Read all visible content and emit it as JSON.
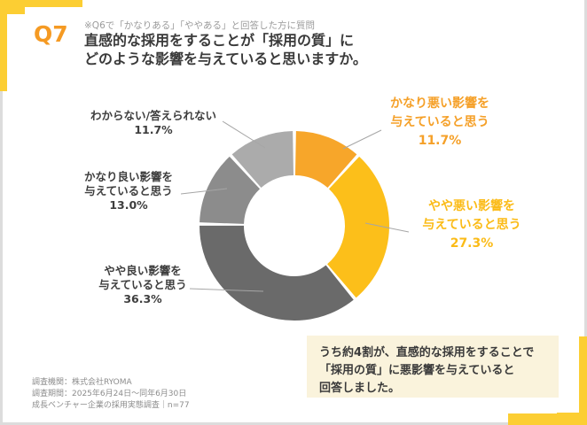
{
  "page": {
    "q_label": "Q7",
    "note": "※Q6で「かなりある」「ややある」と回答した方に質問",
    "title_line1": "直感的な採用をすることが「採用の質」に",
    "title_line2": "どのような影響を与えていると思いますか。",
    "accent_yellow": "#FCCE33",
    "accent_orange": "#F59A23"
  },
  "chart_data": {
    "type": "pie",
    "subtype": "donut",
    "unit": "%",
    "start_angle_deg": 0,
    "direction": "clockwise",
    "inner_radius_ratio": 0.53,
    "segments": [
      {
        "label": "かなり悪い影響を与えていると思う",
        "value": 11.7,
        "color": "#F7A62A"
      },
      {
        "label": "やや悪い影響を与えていると思う",
        "value": 27.3,
        "color": "#FCBF1A"
      },
      {
        "label": "やや良い影響を与えていると思う",
        "value": 36.3,
        "color": "#6A6A6A"
      },
      {
        "label": "かなり良い影響を与えていると思う",
        "value": 13.0,
        "color": "#8C8C8C"
      },
      {
        "label": "わからない/答えられない",
        "value": 11.7,
        "color": "#ABABAB"
      }
    ]
  },
  "labels": {
    "unknown": {
      "line1": "わからない/答えられない",
      "pct": "11.7%"
    },
    "kanari_yoi": {
      "line1": "かなり良い影響を",
      "line2": "与えていると思う",
      "pct": "13.0%"
    },
    "yaya_yoi": {
      "line1": "やや良い影響を",
      "line2": "与えていると思う",
      "pct": "36.3%"
    },
    "kanari_warui": {
      "line1": "かなり悪い影響を",
      "line2": "与えていると思う",
      "pct": "11.7%"
    },
    "yaya_warui": {
      "line1": "やや悪い影響を",
      "line2": "与えていると思う",
      "pct": "27.3%"
    }
  },
  "callout": {
    "bg": "#FAF3DC",
    "line1": "うち約4割が、直感的な採用をすることで",
    "line2": "「採用の質」に悪影響を与えていると",
    "line3": "回答しました。"
  },
  "footer": {
    "line1": "調査機関：株式会社RYOMA",
    "line2": "調査期間：2025年6月24日～同年6月30日",
    "line3": "成長ベンチャー企業の採用実態調査｜n=77"
  }
}
